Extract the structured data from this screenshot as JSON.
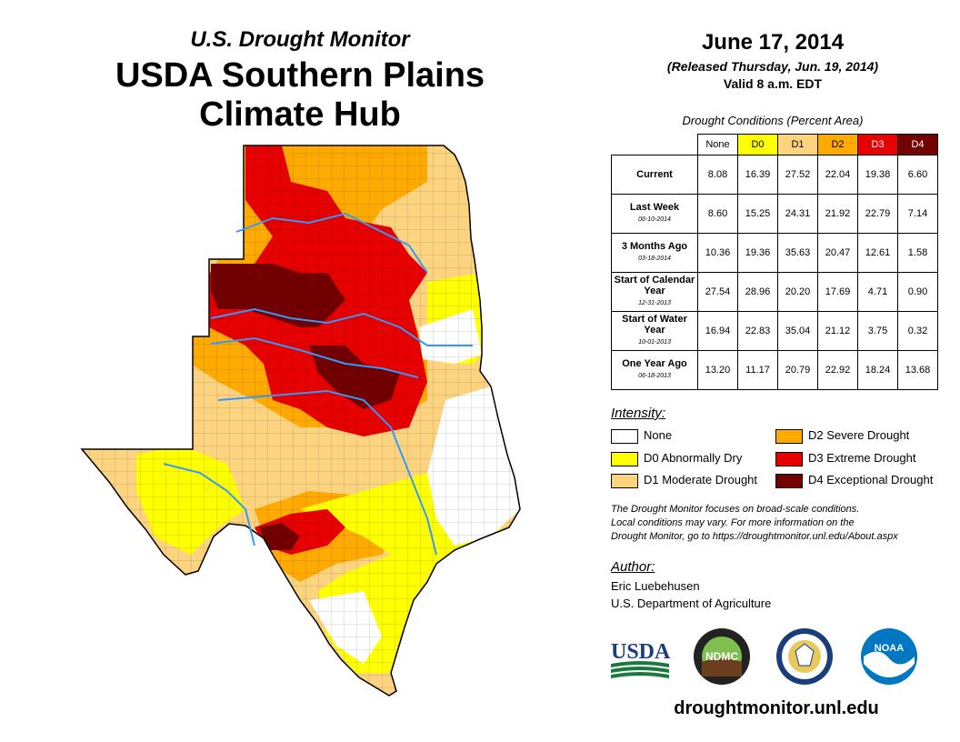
{
  "header": {
    "subtitle": "U.S. Drought Monitor",
    "title_line1": "USDA Southern Plains",
    "title_line2": "Climate Hub"
  },
  "release": {
    "date": "June 17, 2014",
    "released": "(Released Thursday, Jun. 19, 2014)",
    "valid": "Valid 8 a.m. EDT"
  },
  "table": {
    "caption": "Drought Conditions (Percent Area)",
    "columns": [
      "None",
      "D0",
      "D1",
      "D2",
      "D3",
      "D4"
    ],
    "column_colors": [
      "#ffffff",
      "#ffff00",
      "#fcd37f",
      "#ffaa00",
      "#e60000",
      "#730000"
    ],
    "rows": [
      {
        "label": "Current",
        "sublabel": "",
        "values": [
          "8.08",
          "16.39",
          "27.52",
          "22.04",
          "19.38",
          "6.60"
        ]
      },
      {
        "label": "Last Week",
        "sublabel": "06-10-2014",
        "values": [
          "8.60",
          "15.25",
          "24.31",
          "21.92",
          "22.79",
          "7.14"
        ]
      },
      {
        "label": "3 Months Ago",
        "sublabel": "03-18-2014",
        "values": [
          "10.36",
          "19.36",
          "35.63",
          "20.47",
          "12.61",
          "1.58"
        ]
      },
      {
        "label": "Start of Calendar Year",
        "sublabel": "12-31-2013",
        "values": [
          "27.54",
          "28.96",
          "20.20",
          "17.69",
          "4.71",
          "0.90"
        ]
      },
      {
        "label": "Start of Water Year",
        "sublabel": "10-01-2013",
        "values": [
          "16.94",
          "22.83",
          "35.04",
          "21.12",
          "3.75",
          "0.32"
        ]
      },
      {
        "label": "One Year Ago",
        "sublabel": "06-18-2013",
        "values": [
          "13.20",
          "11.17",
          "20.79",
          "22.92",
          "18.24",
          "13.68"
        ]
      }
    ]
  },
  "legend": {
    "title": "Intensity:",
    "items": [
      {
        "label": "None",
        "color": "#ffffff"
      },
      {
        "label": "D0 Abnormally Dry",
        "color": "#ffff00"
      },
      {
        "label": "D1 Moderate Drought",
        "color": "#fcd37f"
      },
      {
        "label": "D2 Severe Drought",
        "color": "#ffaa00"
      },
      {
        "label": "D3 Extreme Drought",
        "color": "#e60000"
      },
      {
        "label": "D4 Exceptional Drought",
        "color": "#730000"
      }
    ]
  },
  "note": {
    "line1": "The Drought Monitor focuses on broad-scale conditions.",
    "line2": "Local conditions may vary. For more information on the",
    "line3": "Drought Monitor, go to https://droughtmonitor.unl.edu/About.aspx"
  },
  "author": {
    "title": "Author:",
    "name": "Eric Luebehusen",
    "org": "U.S. Department of Agriculture"
  },
  "logos": {
    "usda": "USDA",
    "ndmc": "NDMC",
    "noaa": "NOAA"
  },
  "website": "droughtmonitor.unl.edu"
}
